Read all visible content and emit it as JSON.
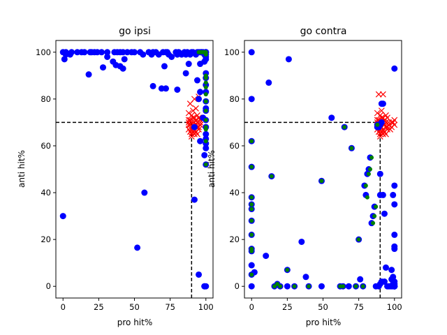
{
  "chart_data": [
    {
      "type": "scatter",
      "title": "go ipsi",
      "xlabel": "pro hit%",
      "ylabel": "anti hit%",
      "xlim": [
        -5,
        105
      ],
      "ylim": [
        -5,
        105
      ],
      "xticks": [
        "0",
        "25",
        "50",
        "75",
        "100"
      ],
      "yticks": [
        "0",
        "20",
        "40",
        "60",
        "80",
        "100"
      ],
      "grid": false,
      "reference_lines": {
        "x": 90,
        "y": 70,
        "style": "dashed",
        "color": "#000000"
      },
      "series": [
        {
          "marker": "x",
          "color": "#ff0000",
          "x": [
            88,
            90,
            92,
            94,
            89,
            91,
            93,
            95,
            88,
            90,
            92,
            94,
            96,
            89,
            91,
            93,
            95,
            88,
            90,
            92,
            94,
            96,
            89,
            91,
            93,
            95,
            90,
            92,
            94,
            88,
            91,
            93,
            89,
            92,
            95,
            90,
            88,
            94,
            96,
            91
          ],
          "y": [
            74,
            73,
            72,
            73,
            71,
            72,
            71,
            72,
            70,
            70,
            70,
            70,
            70,
            69,
            68,
            69,
            68,
            67,
            67,
            67,
            68,
            69,
            66,
            66,
            66,
            67,
            65,
            65,
            65,
            71,
            75,
            76,
            78,
            80,
            81,
            64,
            69,
            70,
            71,
            68
          ]
        },
        {
          "marker": "o",
          "color": "#0000ff",
          "x": [
            0,
            1,
            0,
            2,
            5,
            6,
            10,
            13,
            15,
            19,
            20,
            22,
            24,
            27,
            31,
            36,
            38,
            40,
            42,
            45,
            48,
            50,
            54,
            56,
            60,
            62,
            63,
            65,
            67,
            70,
            72,
            73,
            74,
            79,
            80,
            81,
            83,
            85,
            86,
            87,
            89,
            90,
            91,
            93,
            94,
            95,
            96,
            97,
            98,
            99,
            100,
            100,
            100,
            100,
            100,
            100,
            100,
            100,
            100,
            100,
            100,
            100,
            100,
            100,
            100,
            100,
            97,
            96,
            99,
            86,
            71,
            76,
            94,
            96,
            99,
            100,
            100,
            99,
            100,
            2,
            57,
            52,
            99,
            95,
            92,
            88,
            92,
            96,
            95,
            98,
            100,
            100,
            35,
            40,
            42,
            31,
            18,
            28,
            37,
            43,
            63,
            69,
            72,
            80
          ],
          "y": [
            30,
            97,
            100,
            99,
            99,
            100,
            100,
            100,
            100,
            100,
            100,
            100,
            100,
            100,
            100,
            100,
            100,
            100,
            100,
            100,
            100,
            100,
            100,
            99,
            100,
            99,
            100,
            100,
            99,
            100,
            100,
            100,
            99,
            100,
            99,
            100,
            99,
            100,
            99,
            100,
            99,
            100,
            100,
            99,
            100,
            100,
            100,
            100,
            100,
            99,
            100,
            99,
            100,
            98,
            97,
            91,
            89,
            86,
            83,
            79,
            75,
            71,
            68,
            65,
            59,
            52,
            100,
            95,
            96,
            91,
            94,
            98,
            88,
            83,
            56,
            61,
            63,
            0,
            0,
            100,
            40,
            16.5,
            0,
            5,
            37,
            95,
            68,
            62,
            80,
            72,
            76,
            100,
            96,
            94,
            93,
            98,
            90.5,
            93.5,
            94.5,
            97,
            85.5,
            84.5,
            84.5,
            84
          ]
        },
        {
          "marker": "o-small",
          "color": "#008000",
          "x": [
            100,
            100,
            100,
            100,
            100,
            100,
            100,
            100,
            100,
            100,
            100,
            95,
            96,
            97,
            98,
            99,
            100,
            100,
            100
          ],
          "y": [
            100,
            99,
            90,
            89,
            87,
            85,
            82,
            79,
            75,
            71,
            68,
            100,
            100,
            100,
            100,
            100,
            67,
            62,
            52
          ]
        }
      ]
    },
    {
      "type": "scatter",
      "title": "go contra",
      "xlabel": "pro hit%",
      "ylabel": "anti hit%",
      "xlim": [
        -5,
        105
      ],
      "ylim": [
        -5,
        105
      ],
      "xticks": [
        "0",
        "25",
        "50",
        "75",
        "100"
      ],
      "yticks": [
        "0",
        "20",
        "40",
        "60",
        "80",
        "100"
      ],
      "grid": false,
      "reference_lines": {
        "x": 90,
        "y": 70,
        "style": "dashed",
        "color": "#000000"
      },
      "series": [
        {
          "marker": "x",
          "color": "#ff0000",
          "x": [
            88,
            90,
            92,
            94,
            89,
            91,
            93,
            95,
            88,
            90,
            92,
            94,
            96,
            89,
            91,
            93,
            95,
            98,
            100,
            88,
            90,
            92,
            94,
            96,
            98,
            100,
            89,
            91,
            93,
            95,
            97,
            99,
            90,
            92,
            94,
            88,
            91,
            89,
            92,
            90
          ],
          "y": [
            74,
            73,
            72,
            73,
            71,
            72,
            71,
            72,
            70,
            70,
            70,
            70,
            70,
            69,
            68,
            69,
            68,
            70,
            71,
            67,
            67,
            67,
            68,
            69,
            68,
            69,
            66,
            66,
            66,
            67,
            67,
            70,
            65,
            65,
            65,
            71,
            75,
            82,
            82,
            64
          ],
          "x_extra": [],
          "y_extra": []
        },
        {
          "marker": "o",
          "color": "#0000ff",
          "x": [
            0,
            0,
            12,
            26,
            56,
            88,
            90,
            91,
            89,
            0,
            0,
            0,
            0,
            0,
            0,
            0,
            0,
            0,
            0,
            0,
            0,
            2,
            10,
            14,
            16,
            18,
            20,
            25,
            25,
            30,
            35,
            38,
            40,
            49,
            49,
            62,
            64,
            65,
            68,
            70,
            73,
            75,
            76,
            78,
            79,
            80,
            81,
            82,
            83,
            84,
            85,
            86,
            87,
            88,
            89,
            90,
            90,
            90,
            91,
            91,
            92,
            92,
            93,
            93,
            94,
            95,
            96,
            97,
            98,
            98,
            99,
            99,
            100,
            100,
            100,
            100,
            100,
            100,
            100,
            100,
            100,
            100,
            100,
            100,
            100,
            100,
            99,
            99,
            98,
            100,
            100
          ],
          "y": [
            100,
            80,
            87,
            97,
            72,
            68,
            69,
            70,
            68,
            62,
            51,
            38,
            35,
            33,
            28,
            22,
            16,
            15,
            9,
            5,
            0,
            6,
            13,
            47,
            0,
            1,
            0,
            7,
            0,
            0,
            19,
            4,
            0,
            45,
            0,
            0,
            0,
            68,
            0,
            59,
            0,
            20,
            3,
            0,
            43,
            39,
            48,
            50,
            55,
            27,
            30,
            34,
            0,
            69,
            0,
            48,
            39,
            1,
            78,
            2,
            78,
            39,
            31,
            2,
            8,
            0,
            0,
            0,
            0,
            3,
            4,
            39,
            43,
            35,
            22,
            17,
            16,
            0,
            1,
            2,
            0,
            0,
            1,
            0,
            0,
            0,
            0,
            1,
            7,
            0,
            93
          ],
          "x_extra": [],
          "y_extra": []
        },
        {
          "marker": "o-small",
          "color": "#008000",
          "x": [
            0,
            0,
            0,
            0,
            0,
            0,
            0,
            0,
            0,
            0,
            14,
            16,
            18,
            20,
            25,
            30,
            40,
            49,
            62,
            64,
            65,
            70,
            73,
            75,
            78,
            80,
            81,
            82,
            83,
            84,
            85,
            86,
            87,
            88
          ],
          "y": [
            62,
            51,
            38,
            35,
            33,
            28,
            22,
            16,
            15,
            5,
            47,
            0,
            1,
            0,
            7,
            0,
            0,
            45,
            0,
            0,
            68,
            59,
            0,
            20,
            0,
            43,
            38,
            48,
            50,
            55,
            27,
            30,
            34,
            69
          ],
          "x_extra": [],
          "y_extra": []
        }
      ]
    }
  ]
}
